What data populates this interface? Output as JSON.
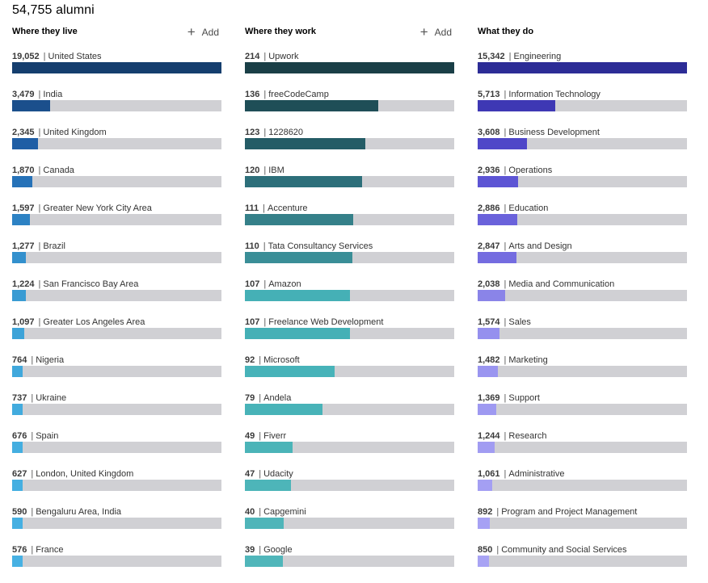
{
  "title": "54,755 alumni",
  "add_label": "Add",
  "columns": [
    {
      "id": "live",
      "title": "Where they live",
      "has_add": true,
      "max": 19052,
      "items": [
        {
          "count": "19,052",
          "value": 19052,
          "label": "United States",
          "color": "#153e6e"
        },
        {
          "count": "3,479",
          "value": 3479,
          "label": "India",
          "color": "#1b4f8c"
        },
        {
          "count": "2,345",
          "value": 2345,
          "label": "United Kingdom",
          "color": "#1f5ea5"
        },
        {
          "count": "1,870",
          "value": 1870,
          "label": "Canada",
          "color": "#2672b8"
        },
        {
          "count": "1,597",
          "value": 1597,
          "label": "Greater New York City Area",
          "color": "#2d82c4"
        },
        {
          "count": "1,277",
          "value": 1277,
          "label": "Brazil",
          "color": "#3390cd"
        },
        {
          "count": "1,224",
          "value": 1224,
          "label": "San Francisco Bay Area",
          "color": "#399bd3"
        },
        {
          "count": "1,097",
          "value": 1097,
          "label": "Greater Los Angeles Area",
          "color": "#3da3d8"
        },
        {
          "count": "764",
          "value": 764,
          "label": "Nigeria",
          "color": "#40a8dc"
        },
        {
          "count": "737",
          "value": 737,
          "label": "Ukraine",
          "color": "#42abde"
        },
        {
          "count": "676",
          "value": 676,
          "label": "Spain",
          "color": "#44aee0"
        },
        {
          "count": "627",
          "value": 627,
          "label": "London, United Kingdom",
          "color": "#45afe1"
        },
        {
          "count": "590",
          "value": 590,
          "label": "Bengaluru Area, India",
          "color": "#46b0e2"
        },
        {
          "count": "576",
          "value": 576,
          "label": "France",
          "color": "#47b1e3"
        }
      ]
    },
    {
      "id": "work",
      "title": "Where they work",
      "has_add": true,
      "max": 214,
      "items": [
        {
          "count": "214",
          "value": 214,
          "label": "Upwork",
          "color": "#1a3f47"
        },
        {
          "count": "136",
          "value": 136,
          "label": "freeCodeCamp",
          "color": "#1f4e57"
        },
        {
          "count": "123",
          "value": 123,
          "label": "1228620",
          "color": "#245c66"
        },
        {
          "count": "120",
          "value": 120,
          "label": "IBM",
          "color": "#2d6f7a"
        },
        {
          "count": "111",
          "value": 111,
          "label": "Accenture",
          "color": "#358089"
        },
        {
          "count": "110",
          "value": 110,
          "label": "Tata Consultancy Services",
          "color": "#3a8e97"
        },
        {
          "count": "107",
          "value": 107,
          "label": "Amazon",
          "color": "#45b0b6"
        },
        {
          "count": "107",
          "value": 107,
          "label": "Freelance Web Development",
          "color": "#45b0b6"
        },
        {
          "count": "92",
          "value": 92,
          "label": "Microsoft",
          "color": "#47b3b9"
        },
        {
          "count": "79",
          "value": 79,
          "label": "Andela",
          "color": "#48b3b8"
        },
        {
          "count": "49",
          "value": 49,
          "label": "Fiverr",
          "color": "#4bb4b8"
        },
        {
          "count": "47",
          "value": 47,
          "label": "Udacity",
          "color": "#4db5b9"
        },
        {
          "count": "40",
          "value": 40,
          "label": "Capgemini",
          "color": "#4fb5b9"
        },
        {
          "count": "39",
          "value": 39,
          "label": "Google",
          "color": "#50b6ba"
        }
      ]
    },
    {
      "id": "do",
      "title": "What they do",
      "has_add": false,
      "max": 15342,
      "items": [
        {
          "count": "15,342",
          "value": 15342,
          "label": "Engineering",
          "color": "#2c2c96"
        },
        {
          "count": "5,713",
          "value": 5713,
          "label": "Information Technology",
          "color": "#3e38b4"
        },
        {
          "count": "3,608",
          "value": 3608,
          "label": "Business Development",
          "color": "#4f47c8"
        },
        {
          "count": "2,936",
          "value": 2936,
          "label": "Operations",
          "color": "#5d55d4"
        },
        {
          "count": "2,886",
          "value": 2886,
          "label": "Education",
          "color": "#6a62db"
        },
        {
          "count": "2,847",
          "value": 2847,
          "label": "Arts and Design",
          "color": "#746ce0"
        },
        {
          "count": "2,038",
          "value": 2038,
          "label": "Media and Communication",
          "color": "#8a84e8"
        },
        {
          "count": "1,574",
          "value": 1574,
          "label": "Sales",
          "color": "#9590ee"
        },
        {
          "count": "1,482",
          "value": 1482,
          "label": "Marketing",
          "color": "#9a95f0"
        },
        {
          "count": "1,369",
          "value": 1369,
          "label": "Support",
          "color": "#9e99f1"
        },
        {
          "count": "1,244",
          "value": 1244,
          "label": "Research",
          "color": "#a19cf2"
        },
        {
          "count": "1,061",
          "value": 1061,
          "label": "Administrative",
          "color": "#a49ff3"
        },
        {
          "count": "892",
          "value": 892,
          "label": "Program and Project Management",
          "color": "#a6a1f4"
        },
        {
          "count": "850",
          "value": 850,
          "label": "Community and Social Services",
          "color": "#a8a3f4"
        }
      ]
    }
  ]
}
